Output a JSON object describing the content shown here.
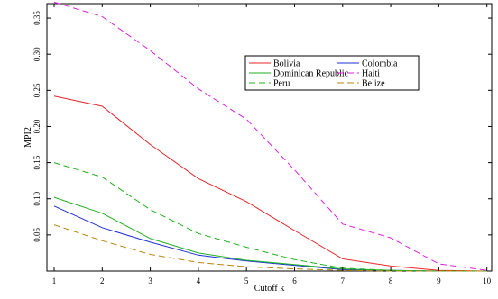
{
  "chart_data": {
    "type": "line",
    "xlabel": "Cutoff k",
    "ylabel": "MPI2",
    "xlim": [
      0.85,
      10.1
    ],
    "ylim": [
      0,
      0.37
    ],
    "x_ticks": [
      1,
      2,
      3,
      4,
      5,
      6,
      7,
      8,
      9,
      10
    ],
    "y_ticks": [
      0.05,
      0.1,
      0.15,
      0.2,
      0.25,
      0.3,
      0.35
    ],
    "y_tick_labels": [
      "0.05",
      "0.10",
      "0.15",
      "0.20",
      "0.25",
      "0.30",
      "0.35"
    ],
    "x": [
      1,
      2,
      3,
      4,
      5,
      6,
      7,
      8,
      9,
      10
    ],
    "series": [
      {
        "name": "Bolivia",
        "color": "#e8262a",
        "dash": "solid",
        "values": [
          0.242,
          0.228,
          0.175,
          0.128,
          0.096,
          0.056,
          0.017,
          0.007,
          0.001,
          0.0
        ]
      },
      {
        "name": "Colombia",
        "color": "#1f2fd6",
        "dash": "solid",
        "values": [
          0.09,
          0.06,
          0.04,
          0.022,
          0.014,
          0.008,
          0.002,
          0.001,
          0.0,
          0.0
        ]
      },
      {
        "name": "Dominican Republic",
        "color": "#22b022",
        "dash": "solid",
        "values": [
          0.102,
          0.08,
          0.045,
          0.025,
          0.015,
          0.009,
          0.003,
          0.001,
          0.0,
          0.0
        ]
      },
      {
        "name": "Haiti",
        "color": "#e020e0",
        "dash": "dashed",
        "values": [
          0.372,
          0.352,
          0.305,
          0.252,
          0.21,
          0.14,
          0.065,
          0.046,
          0.01,
          0.001
        ]
      },
      {
        "name": "Peru",
        "color": "#22b022",
        "dash": "dashed",
        "values": [
          0.15,
          0.13,
          0.085,
          0.052,
          0.033,
          0.016,
          0.004,
          0.001,
          0.0,
          0.0
        ]
      },
      {
        "name": "Belize",
        "color": "#b8860b",
        "dash": "dashed",
        "values": [
          0.064,
          0.042,
          0.023,
          0.012,
          0.006,
          0.003,
          0.001,
          0.0,
          0.0,
          0.0
        ]
      }
    ],
    "legend": {
      "placement": "upper-right",
      "columns": 2,
      "order": [
        "Bolivia",
        "Colombia",
        "Dominican Republic",
        "Haiti",
        "Peru",
        "Belize"
      ]
    },
    "grid": false
  }
}
